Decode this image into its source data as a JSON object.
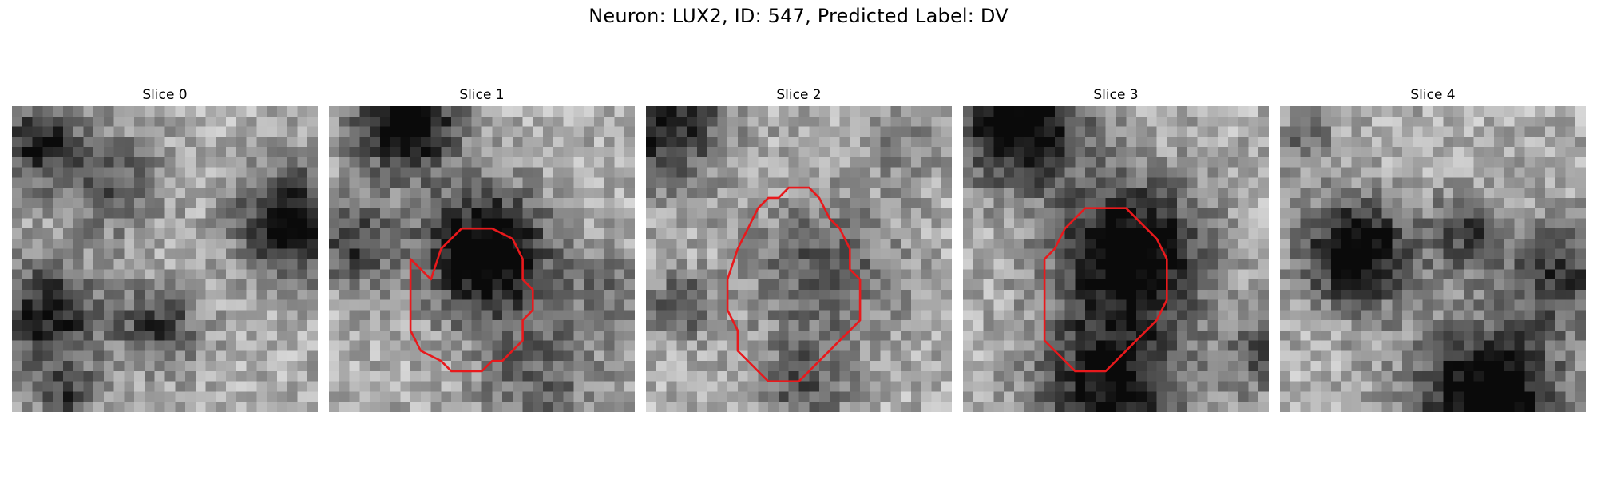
{
  "title": "Neuron: LUX2, ID: 547, Predicted Label: DV",
  "colors": {
    "contour": "#e8191c",
    "background": "#ffffff",
    "colormap": "grayscale"
  },
  "panels": [
    {
      "label": "Slice 0",
      "has_contour": false
    },
    {
      "label": "Slice 1",
      "has_contour": true
    },
    {
      "label": "Slice 2",
      "has_contour": true
    },
    {
      "label": "Slice 3",
      "has_contour": true
    },
    {
      "label": "Slice 4",
      "has_contour": false
    }
  ]
}
